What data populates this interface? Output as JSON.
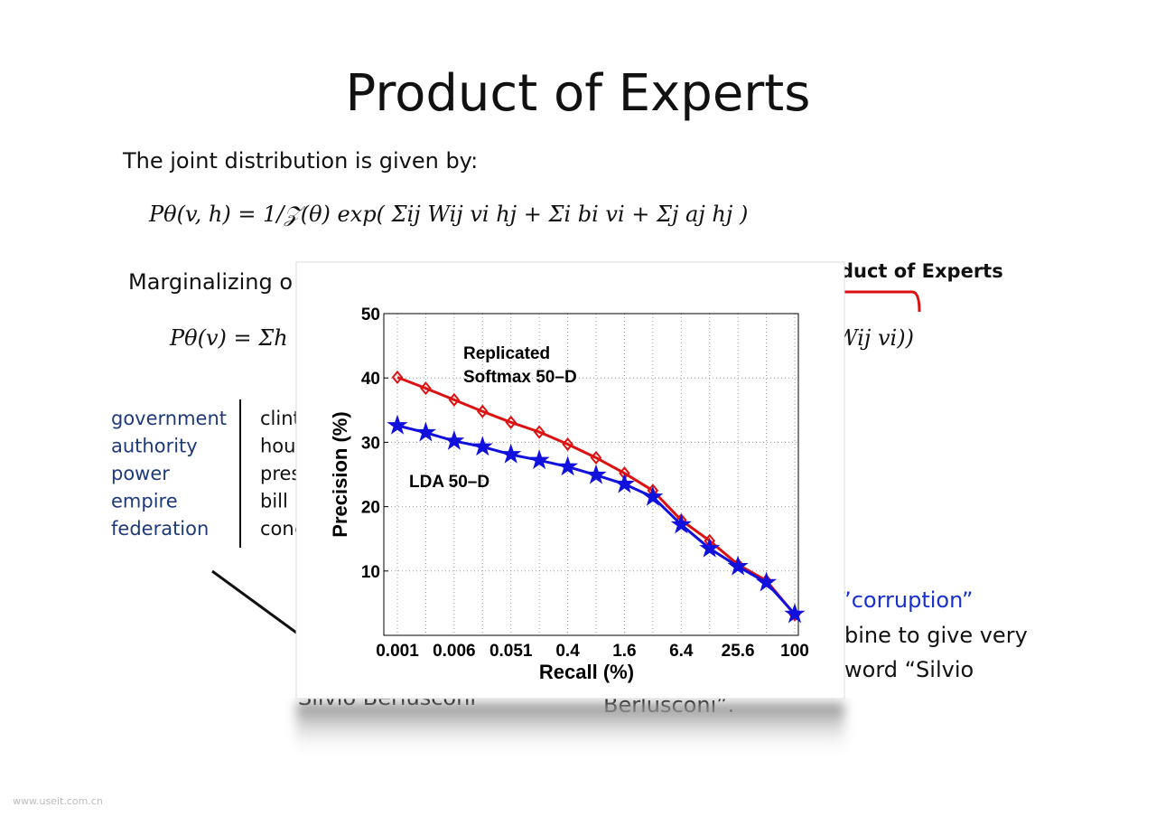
{
  "slide": {
    "title": "Product of Experts",
    "intro": "The joint distribution is given by:",
    "equation_1": "Pθ(v, h) = 1/𝒵(θ) exp( Σij Wij vi hj + Σi bi vi + Σj aj hj )",
    "marginal_text": "Marginalizing o",
    "equation_2_left": "Pθ(v) = Σh",
    "equation_2_right": "Wij vi))",
    "right_heading": "duct of Experts",
    "topic_words": [
      "government",
      "authority",
      "power",
      "empire",
      "federation"
    ],
    "topic_words_2": [
      "clint",
      "hou",
      "pres",
      "bill",
      "cong"
    ],
    "right_lines": [
      ", ”corruption”",
      "bine to give very",
      "word “Silvio",
      "Berlusconi”."
    ],
    "left_bottom": "Silvio Berlusconi",
    "watermark": "www.useit.com.cn"
  },
  "chart_data": {
    "type": "line",
    "xlabel": "Recall (%)",
    "ylabel": "Precision (%)",
    "categories": [
      "0.001",
      null,
      "0.006",
      null,
      "0.051",
      null,
      "0.4",
      null,
      "1.6",
      null,
      "6.4",
      null,
      "25.6",
      null,
      "100"
    ],
    "series": [
      {
        "color": "#dd1111",
        "marker": "diamond",
        "values": [
          40.1,
          38.4,
          36.6,
          34.8,
          33.1,
          31.6,
          29.7,
          27.6,
          25.2,
          22.5,
          17.9,
          14.7,
          11.0,
          8.5,
          3.2
        ]
      },
      {
        "color": "#1111dd",
        "marker": "star",
        "values": [
          32.6,
          31.5,
          30.2,
          29.3,
          28.1,
          27.2,
          26.2,
          24.9,
          23.5,
          21.5,
          17.2,
          13.5,
          10.7,
          8.2,
          3.3
        ]
      }
    ],
    "annotations": [
      "Replicated",
      "Softmax 50–D",
      "LDA 50–D"
    ],
    "ylim": [
      0,
      50
    ],
    "yticks": [
      10,
      20,
      30,
      40,
      50
    ],
    "grid": true
  }
}
